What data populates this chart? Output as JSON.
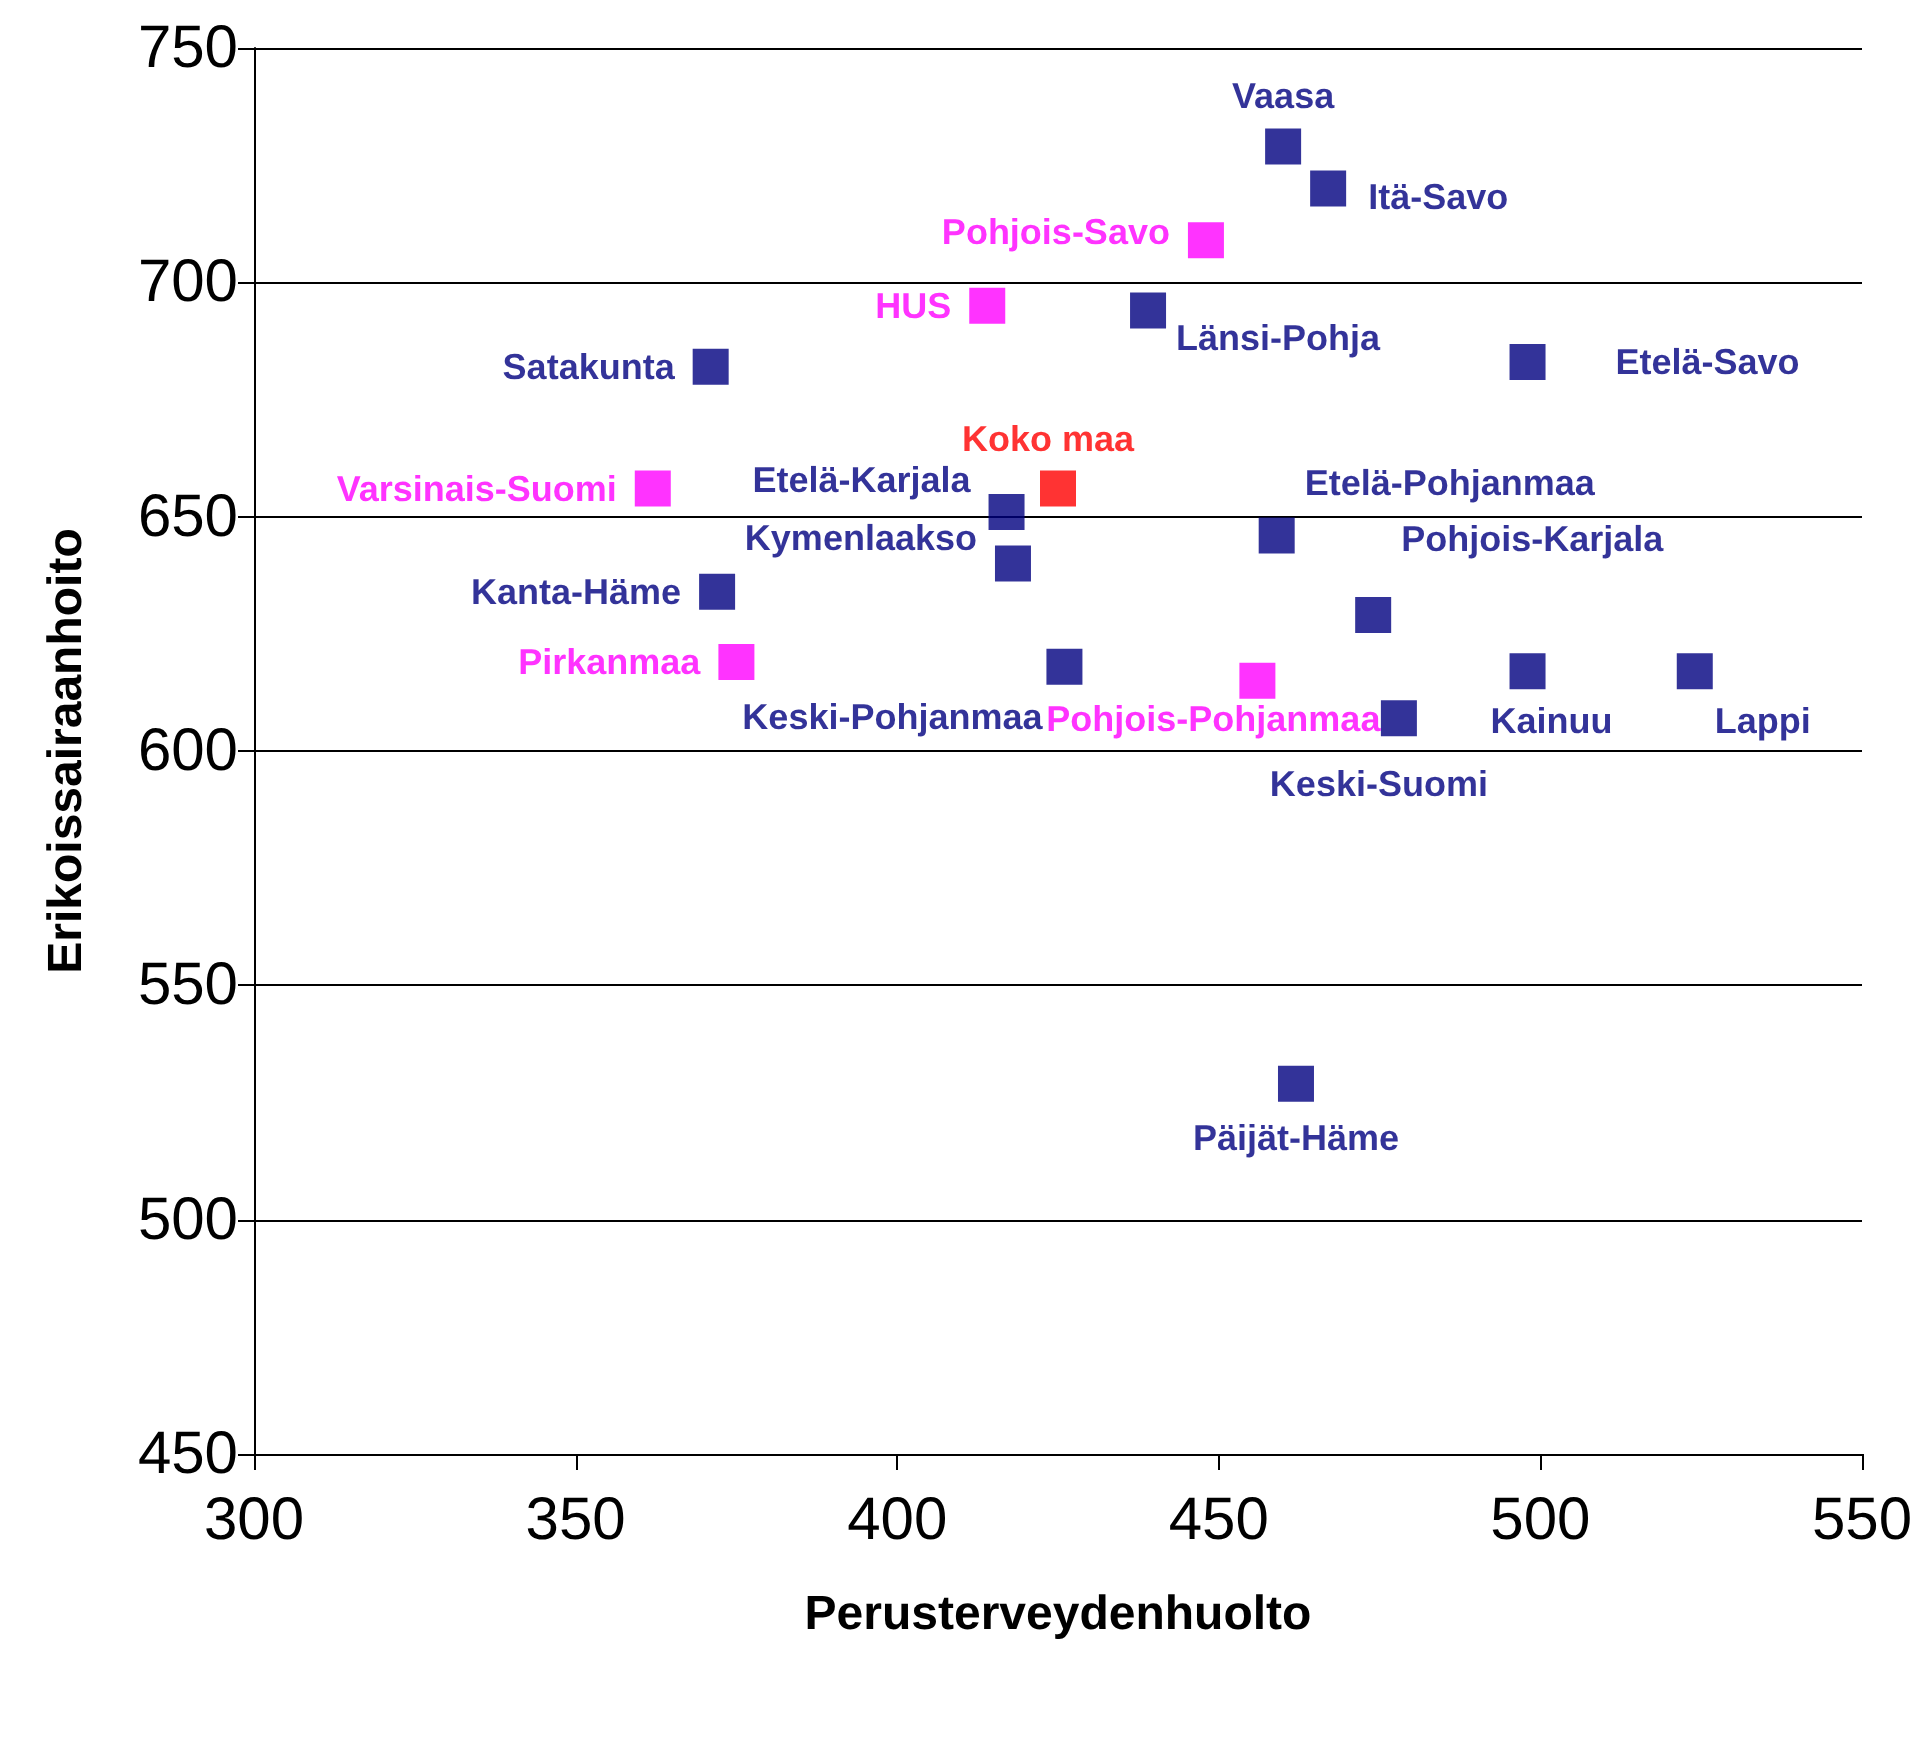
{
  "chart_data": {
    "type": "scatter",
    "xlabel": "Perusterveydenhuolto",
    "ylabel": "Erikoissairaanhoito",
    "xlim": [
      300,
      550
    ],
    "xticks": [
      300,
      350,
      400,
      450,
      500,
      550
    ],
    "ylim": [
      450,
      750
    ],
    "yticks": [
      450,
      500,
      550,
      600,
      650,
      700,
      750
    ],
    "grid": "y",
    "legend": false,
    "marker": "square",
    "series": [
      {
        "name": "Vaasa",
        "color": "#000080",
        "x": [
          460
        ],
        "values": [
          729
        ]
      },
      {
        "name": "Itä-Savo",
        "color": "#000080",
        "x": [
          467
        ],
        "values": [
          720
        ]
      },
      {
        "name": "Pohjois-Savo",
        "color": "#ff00ff",
        "x": [
          448
        ],
        "values": [
          709
        ]
      },
      {
        "name": "HUS",
        "color": "#ff00ff",
        "x": [
          414
        ],
        "values": [
          695
        ]
      },
      {
        "name": "Länsi-Pohja",
        "color": "#000080",
        "x": [
          439
        ],
        "values": [
          694
        ]
      },
      {
        "name": "Satakunta",
        "color": "#000080",
        "x": [
          371
        ],
        "values": [
          682
        ]
      },
      {
        "name": "Etelä-Savo",
        "color": "#000080",
        "x": [
          498
        ],
        "values": [
          683
        ]
      },
      {
        "name": "Koko maa",
        "color": "#ff0000",
        "x": [
          425
        ],
        "values": [
          656
        ]
      },
      {
        "name": "Varsinais-Suomi",
        "color": "#ff00ff",
        "x": [
          362
        ],
        "values": [
          656
        ]
      },
      {
        "name": "Etelä-Karjala",
        "color": "#000080",
        "x": [
          417
        ],
        "values": [
          651
        ]
      },
      {
        "name": "Etelä-Pohjanmaa",
        "color": "#000080",
        "x": [
          459
        ],
        "values": [
          646
        ]
      },
      {
        "name": "Kymenlaakso",
        "color": "#000080",
        "x": [
          418
        ],
        "values": [
          640
        ]
      },
      {
        "name": "Kanta-Häme",
        "color": "#000080",
        "x": [
          372
        ],
        "values": [
          634
        ]
      },
      {
        "name": "Pohjois-Karjala",
        "color": "#000080",
        "x": [
          474
        ],
        "values": [
          629
        ]
      },
      {
        "name": "Pirkanmaa",
        "color": "#ff00ff",
        "x": [
          375
        ],
        "values": [
          619
        ]
      },
      {
        "name": "Keski-Pohjanmaa",
        "color": "#000080",
        "x": [
          426
        ],
        "values": [
          618
        ]
      },
      {
        "name": "Pohjois-Pohjanmaa",
        "color": "#ff00ff",
        "x": [
          456
        ],
        "values": [
          615
        ]
      },
      {
        "name": "Kainuu",
        "color": "#000080",
        "x": [
          498
        ],
        "values": [
          617
        ]
      },
      {
        "name": "Lappi",
        "color": "#000080",
        "x": [
          524
        ],
        "values": [
          617
        ]
      },
      {
        "name": "Keski-Suomi",
        "color": "#000080",
        "x": [
          478
        ],
        "values": [
          607
        ]
      },
      {
        "name": "Päijät-Häme",
        "color": "#000080",
        "x": [
          462
        ],
        "values": [
          529
        ]
      }
    ]
  }
}
